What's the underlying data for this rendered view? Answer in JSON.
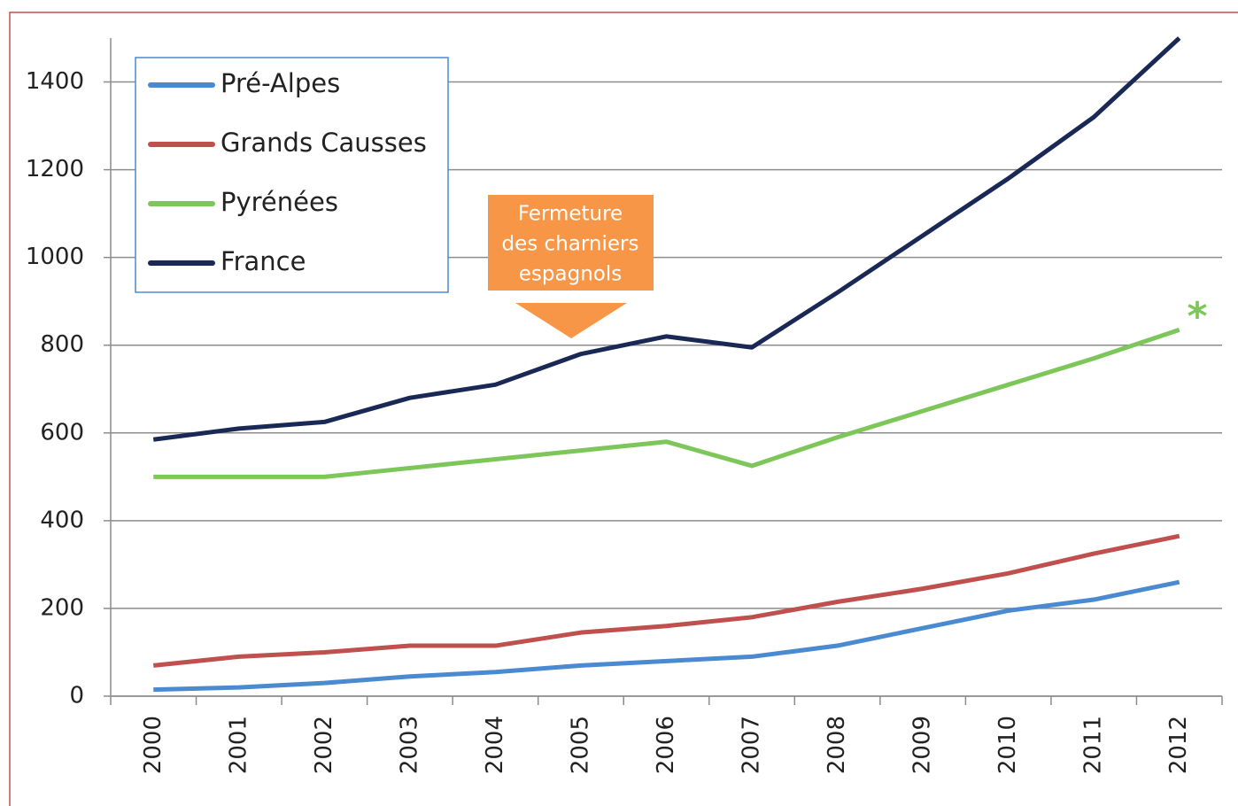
{
  "chart_data": {
    "type": "line",
    "categories": [
      "2000",
      "2001",
      "2002",
      "2003",
      "2004",
      "2005",
      "2006",
      "2007",
      "2008",
      "2009",
      "2010",
      "2011",
      "2012"
    ],
    "series": [
      {
        "name": "Pré-Alpes",
        "color": "#4a8ad0",
        "values": [
          15,
          20,
          30,
          45,
          55,
          70,
          80,
          90,
          115,
          155,
          195,
          220,
          260
        ]
      },
      {
        "name": "Grands Causses",
        "color": "#c0504d",
        "values": [
          70,
          90,
          100,
          115,
          115,
          145,
          160,
          180,
          215,
          245,
          280,
          325,
          365
        ]
      },
      {
        "name": "Pyrénées",
        "color": "#7dc75a",
        "values": [
          500,
          500,
          500,
          520,
          540,
          560,
          580,
          525,
          590,
          650,
          710,
          770,
          835
        ]
      },
      {
        "name": "France",
        "color": "#1a2856",
        "values": [
          585,
          610,
          625,
          680,
          710,
          780,
          820,
          795,
          920,
          1050,
          1180,
          1320,
          1500
        ]
      }
    ],
    "ylim": [
      0,
      1500
    ],
    "yticks": [
      0,
      200,
      400,
      600,
      800,
      1000,
      1200,
      1400
    ],
    "grid": true,
    "legend": "top-left",
    "annotations": [
      {
        "lines": [
          "Fermeture",
          "des charniers",
          "espagnols"
        ],
        "color": "#f79646"
      },
      {
        "text": "*",
        "color": "#7dc75a"
      }
    ]
  }
}
